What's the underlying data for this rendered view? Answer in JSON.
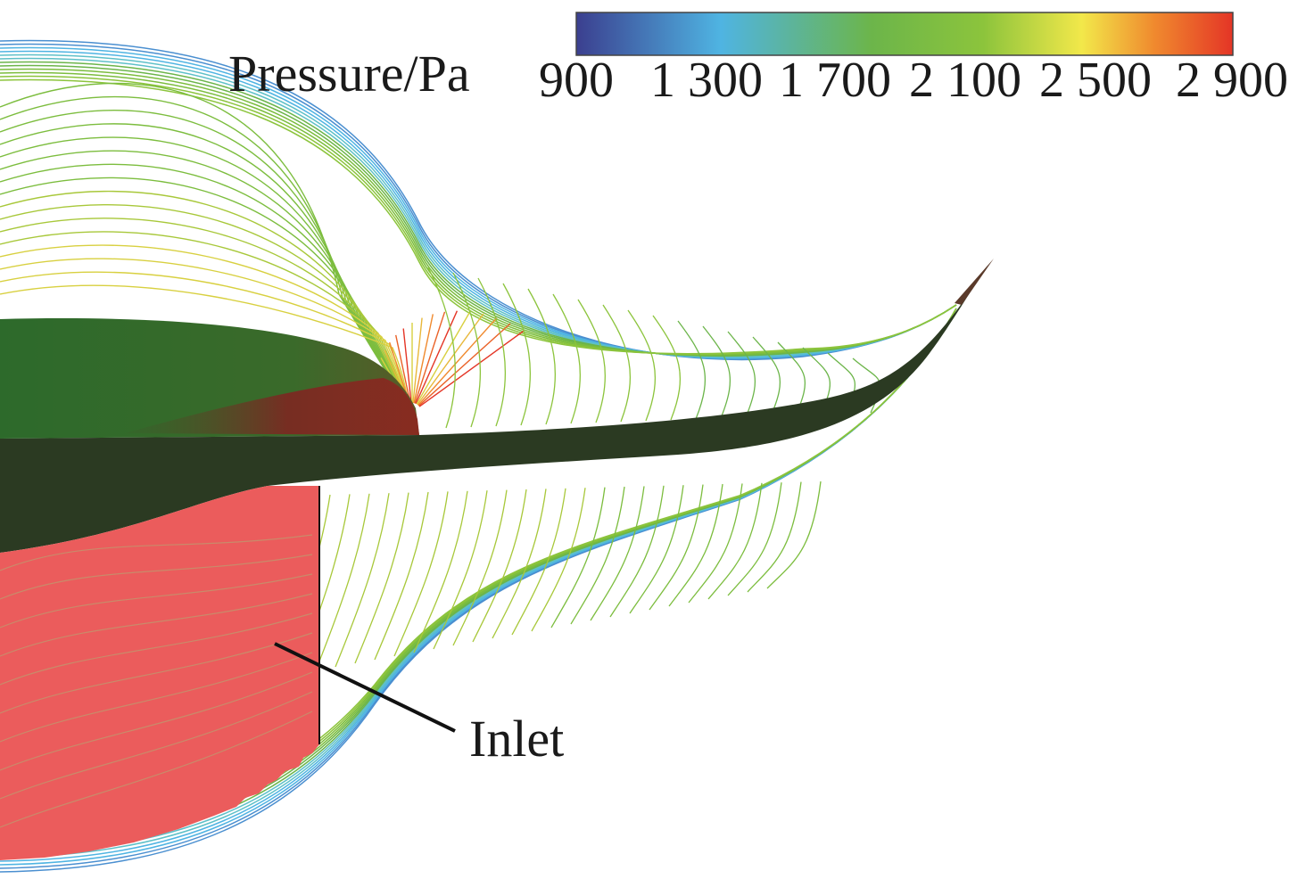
{
  "colorbar": {
    "title": "Pressure/Pa",
    "ticks": [
      "900",
      "1 300",
      "1 700",
      "2 100",
      "2 500",
      "2 900"
    ],
    "min": 900,
    "max": 2900,
    "colors": [
      "#3b3f8f",
      "#4fb4e2",
      "#6cb54a",
      "#8cc43c",
      "#f2e84a",
      "#f08a2e",
      "#e43526"
    ]
  },
  "annotation": {
    "inlet_label": "Inlet"
  },
  "field_colors": {
    "inlet_region": "#eb5c5c",
    "body_dark": "#2b3a22",
    "upper_body": "#2d6a2b",
    "high_pressure": "#7a2a22"
  }
}
